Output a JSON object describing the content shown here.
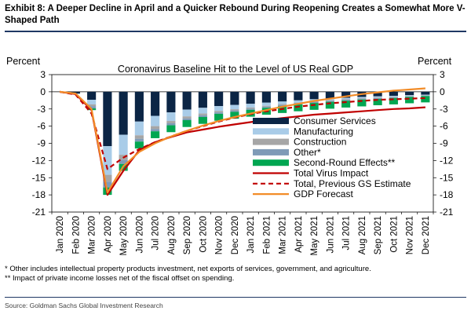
{
  "exhibit_title": "Exhibit 8: A Deeper Decline in April and a Quicker Rebound During Reopening Creates a Somewhat More V-Shaped Path",
  "footnotes": [
    "* Other includes intellectual property products investment, net exports of services, government, and agriculture.",
    "** Impact of private income losses net of the fiscal offset on spending."
  ],
  "source": "Source: Goldman Sachs Global Investment Research",
  "chart_data": {
    "type": "bar",
    "title": "Coronavirus Baseline Hit to the Level of US Real GDP",
    "ylabel_left": "Percent",
    "ylabel_right": "Percent",
    "ylim": [
      -21,
      3
    ],
    "yticks": [
      3,
      0,
      -3,
      -6,
      -9,
      -12,
      -15,
      -18,
      -21
    ],
    "categories": [
      "Jan 2020",
      "Feb 2020",
      "Mar 2020",
      "Apr 2020",
      "May 2020",
      "Jun 2020",
      "Jul 2020",
      "Aug 2020",
      "Sep 2020",
      "Oct 2020",
      "Nov 2020",
      "Dec 2020",
      "Jan 2021",
      "Feb 2021",
      "Mar 2021",
      "Apr 2021",
      "May 2021",
      "Jun 2021",
      "Jul 2021",
      "Aug 2021",
      "Sep 2021",
      "Oct 2021",
      "Nov 2021",
      "Dec 2021"
    ],
    "stacked_series": [
      {
        "name": "Consumer Services",
        "color": "#0b2545",
        "values": [
          0,
          -0.3,
          -1.4,
          -9.5,
          -7.5,
          -5.2,
          -4.2,
          -3.6,
          -3.1,
          -2.8,
          -2.5,
          -2.3,
          -2.1,
          -1.9,
          -1.7,
          -1.5,
          -1.3,
          -1.2,
          -1.05,
          -0.9,
          -0.8,
          -0.7,
          -0.6,
          -0.5
        ]
      },
      {
        "name": "Manufacturing",
        "color": "#a9cce8",
        "values": [
          0,
          -0.05,
          -0.8,
          -5.0,
          -3.5,
          -2.4,
          -1.8,
          -1.5,
          -1.2,
          -1.0,
          -0.85,
          -0.75,
          -0.65,
          -0.55,
          -0.45,
          -0.4,
          -0.35,
          -0.3,
          -0.25,
          -0.2,
          -0.2,
          -0.15,
          -0.15,
          -0.1
        ]
      },
      {
        "name": "Construction",
        "color": "#a6a6a6",
        "values": [
          0,
          0,
          -0.3,
          -1.2,
          -0.9,
          -0.6,
          -0.5,
          -0.4,
          -0.35,
          -0.3,
          -0.25,
          -0.2,
          -0.2,
          -0.15,
          -0.15,
          -0.1,
          -0.1,
          -0.1,
          -0.1,
          -0.1,
          -0.1,
          -0.1,
          -0.05,
          -0.05
        ]
      },
      {
        "name": "Other*",
        "color": "#7f9bb7",
        "values": [
          0,
          -0.05,
          -0.4,
          -1.0,
          -0.7,
          -0.5,
          -0.4,
          -0.35,
          -0.3,
          -0.3,
          -0.25,
          -0.25,
          -0.2,
          -0.2,
          -0.2,
          -0.2,
          -0.2,
          -0.15,
          -0.15,
          -0.15,
          -0.15,
          -0.15,
          -0.1,
          -0.1
        ]
      },
      {
        "name": "Second-Round Effects**",
        "color": "#00a651",
        "values": [
          0,
          0,
          -0.3,
          -1.3,
          -1.2,
          -1.2,
          -1.2,
          -1.2,
          -1.2,
          -1.2,
          -1.2,
          -1.2,
          -1.2,
          -1.2,
          -1.2,
          -1.2,
          -1.2,
          -1.2,
          -1.2,
          -1.2,
          -1.1,
          -1.1,
          -1.1,
          -1.1
        ]
      }
    ],
    "line_series": [
      {
        "name": "Total Virus Impact",
        "color": "#c00000",
        "dash": "solid",
        "values": [
          0,
          -0.4,
          -3.2,
          -18.0,
          -13.8,
          -10.2,
          -8.8,
          -7.9,
          -7.1,
          -6.6,
          -6.1,
          -5.7,
          -5.3,
          -4.9,
          -4.6,
          -4.3,
          -4.0,
          -3.8,
          -3.6,
          -3.4,
          -3.2,
          -3.0,
          -2.9,
          -2.7
        ]
      },
      {
        "name": "Total, Previous GS Estimate",
        "color": "#c00000",
        "dash": "dashed",
        "values": [
          0,
          -0.5,
          -3.8,
          -13.5,
          -11.5,
          -10.0,
          -8.8,
          -7.8,
          -6.8,
          -6.0,
          -5.2,
          -4.5,
          -3.9,
          -3.4,
          -3.0,
          -2.6,
          -2.3,
          -2.0,
          -1.8,
          -1.6,
          -1.4,
          -1.3,
          -1.2,
          -1.1
        ]
      },
      {
        "name": "GDP Forecast",
        "color": "#f28c28",
        "dash": "solid",
        "values": [
          0,
          -0.3,
          -3.0,
          -17.6,
          -13.0,
          -10.5,
          -9.0,
          -7.8,
          -6.8,
          -5.9,
          -5.1,
          -4.4,
          -3.8,
          -3.2,
          -2.6,
          -2.1,
          -1.6,
          -1.2,
          -0.8,
          -0.4,
          -0.1,
          0.2,
          0.4,
          0.6
        ]
      }
    ],
    "grid": false,
    "legend_position": "bottom-right"
  }
}
